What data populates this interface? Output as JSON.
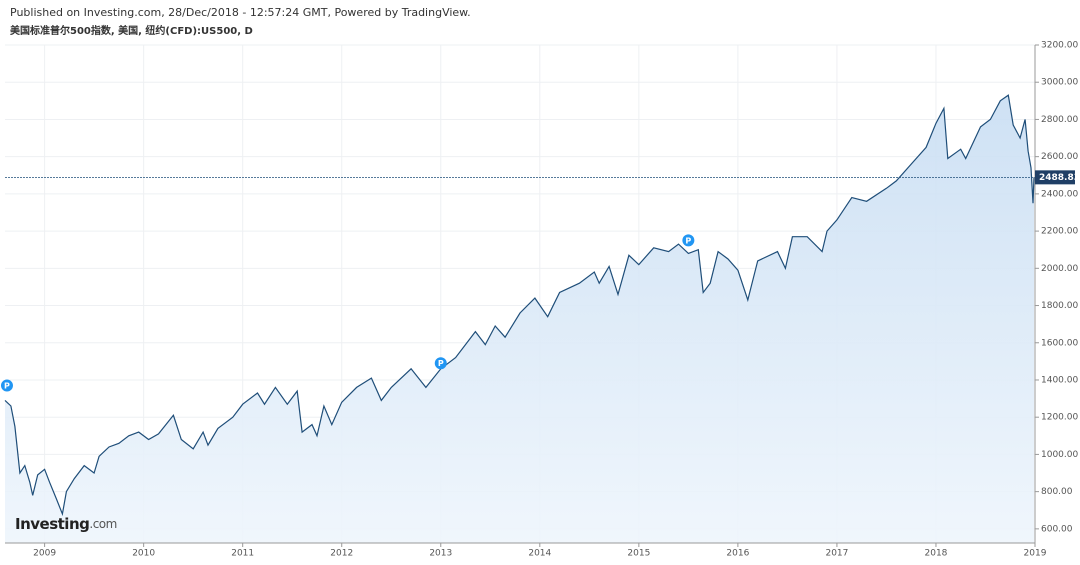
{
  "chart_data": {
    "type": "area",
    "publisher": "Published on Investing.com, 28/Dec/2018 - 12:57:24 GMT, Powered by TradingView.",
    "title": "美国标准普尔500指数, 美国, 纽约(CFD):US500, D",
    "watermark": [
      "Investing",
      ".com"
    ],
    "color": "#1f4e79",
    "fill": "#dbe9f7",
    "grid": true,
    "xlim": [
      2008.6,
      2019.0
    ],
    "xticks": [
      2009,
      2010,
      2011,
      2012,
      2013,
      2014,
      2015,
      2016,
      2017,
      2018,
      2019
    ],
    "ylim": [
      524,
      3200
    ],
    "yticks": [
      {
        "value": 600,
        "label": "600.00"
      },
      {
        "value": 800,
        "label": "800.00"
      },
      {
        "value": 1000,
        "label": "1000.00"
      },
      {
        "value": 1200,
        "label": "1200.00"
      },
      {
        "value": 1400,
        "label": "1400.00"
      },
      {
        "value": 1600,
        "label": "1600.00"
      },
      {
        "value": 1800,
        "label": "1800.00"
      },
      {
        "value": 2000,
        "label": "2000.00"
      },
      {
        "value": 2200,
        "label": "2200.00"
      },
      {
        "value": 2400,
        "label": "2400.00"
      },
      {
        "value": 2600,
        "label": "2600.00"
      },
      {
        "value": 2800,
        "label": "2800.00"
      },
      {
        "value": 3000,
        "label": "3000.00"
      },
      {
        "value": 3200,
        "label": "3200.00"
      }
    ],
    "last_price": {
      "value": 2488.83,
      "label": "2488.83"
    },
    "markers": [
      {
        "x": 2008.62,
        "y": 1370,
        "label": "P"
      },
      {
        "x": 2013.0,
        "y": 1490,
        "label": "P"
      },
      {
        "x": 2015.5,
        "y": 2150,
        "label": "P"
      }
    ],
    "x": [
      2008.6,
      2008.66,
      2008.7,
      2008.75,
      2008.8,
      2008.85,
      2008.88,
      2008.93,
      2009.0,
      2009.05,
      2009.12,
      2009.18,
      2009.22,
      2009.3,
      2009.4,
      2009.5,
      2009.55,
      2009.65,
      2009.75,
      2009.85,
      2009.95,
      2010.05,
      2010.15,
      2010.3,
      2010.38,
      2010.5,
      2010.6,
      2010.65,
      2010.75,
      2010.9,
      2011.0,
      2011.15,
      2011.22,
      2011.33,
      2011.45,
      2011.55,
      2011.6,
      2011.7,
      2011.75,
      2011.82,
      2011.9,
      2012.0,
      2012.15,
      2012.3,
      2012.4,
      2012.5,
      2012.7,
      2012.85,
      2013.0,
      2013.15,
      2013.35,
      2013.45,
      2013.55,
      2013.65,
      2013.8,
      2013.95,
      2014.08,
      2014.2,
      2014.4,
      2014.55,
      2014.6,
      2014.7,
      2014.79,
      2014.9,
      2015.0,
      2015.15,
      2015.3,
      2015.4,
      2015.5,
      2015.6,
      2015.65,
      2015.72,
      2015.8,
      2015.9,
      2016.0,
      2016.1,
      2016.2,
      2016.4,
      2016.48,
      2016.55,
      2016.7,
      2016.85,
      2016.9,
      2017.0,
      2017.15,
      2017.3,
      2017.5,
      2017.6,
      2017.75,
      2017.9,
      2018.0,
      2018.08,
      2018.12,
      2018.25,
      2018.3,
      2018.45,
      2018.55,
      2018.65,
      2018.73,
      2018.78,
      2018.85,
      2018.9,
      2018.93,
      2018.96,
      2018.98,
      2018.99
    ],
    "values": [
      1290,
      1260,
      1150,
      900,
      940,
      850,
      780,
      890,
      920,
      850,
      760,
      680,
      800,
      870,
      940,
      900,
      990,
      1040,
      1060,
      1100,
      1120,
      1080,
      1110,
      1210,
      1080,
      1030,
      1120,
      1050,
      1140,
      1200,
      1270,
      1330,
      1270,
      1360,
      1270,
      1340,
      1120,
      1160,
      1100,
      1260,
      1160,
      1280,
      1360,
      1410,
      1290,
      1360,
      1460,
      1360,
      1460,
      1520,
      1660,
      1590,
      1690,
      1630,
      1760,
      1840,
      1740,
      1870,
      1920,
      1980,
      1920,
      2010,
      1860,
      2070,
      2020,
      2110,
      2090,
      2130,
      2080,
      2100,
      1870,
      1920,
      2090,
      2050,
      1990,
      1830,
      2040,
      2090,
      2000,
      2170,
      2170,
      2090,
      2200,
      2260,
      2380,
      2360,
      2430,
      2470,
      2560,
      2650,
      2780,
      2860,
      2590,
      2640,
      2590,
      2760,
      2800,
      2900,
      2930,
      2770,
      2700,
      2800,
      2630,
      2540,
      2350,
      2488.83
    ]
  }
}
